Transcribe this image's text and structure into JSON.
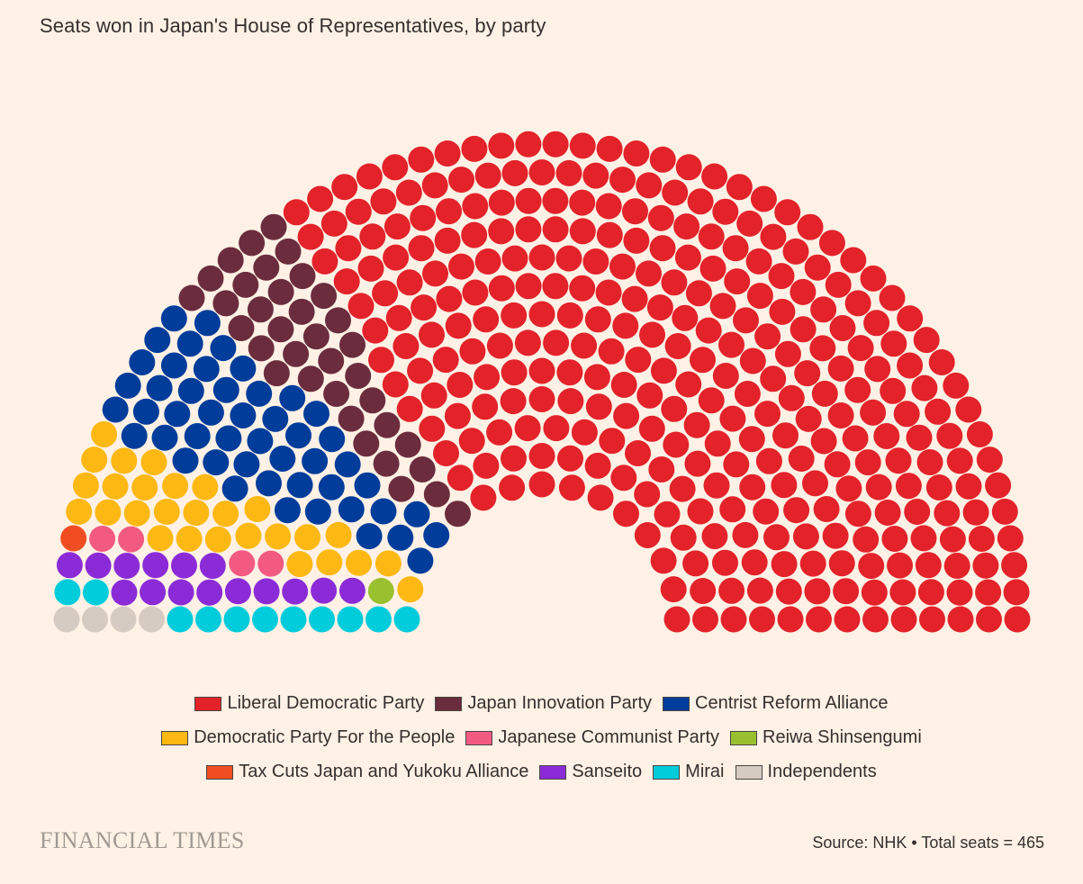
{
  "title": "Seats won in Japan's House of Representatives, by party",
  "source": "Source: NHK • Total seats = 465",
  "brand": "FINANCIAL TIMES",
  "chart_data": {
    "type": "parliament",
    "total_seats": 465,
    "series": [
      {
        "name": "Liberal Democratic Party",
        "value": 316,
        "color": "#E3222A"
      },
      {
        "name": "Japan Innovation Party",
        "value": 36,
        "color": "#6B2D3E"
      },
      {
        "name": "Centrist Reform Alliance",
        "value": 49,
        "color": "#003D9B"
      },
      {
        "name": "Democratic Party For the People",
        "value": 28,
        "color": "#FDB813"
      },
      {
        "name": "Japanese Communist Party",
        "value": 4,
        "color": "#F25A82"
      },
      {
        "name": "Reiwa Shinsengumi",
        "value": 1,
        "color": "#99C12F"
      },
      {
        "name": "Tax Cuts Japan and Yukoku Alliance",
        "value": 1,
        "color": "#F04E22"
      },
      {
        "name": "Sanseito",
        "value": 15,
        "color": "#8B2BD8"
      },
      {
        "name": "Mirai",
        "value": 11,
        "color": "#00CCDB"
      },
      {
        "name": "Independents",
        "value": 4,
        "color": "#D6CBC3"
      }
    ],
    "legend_placement": "bottom"
  },
  "legend_rows": [
    [
      0,
      1,
      2
    ],
    [
      3,
      4,
      5
    ],
    [
      6,
      7,
      8,
      9
    ]
  ]
}
